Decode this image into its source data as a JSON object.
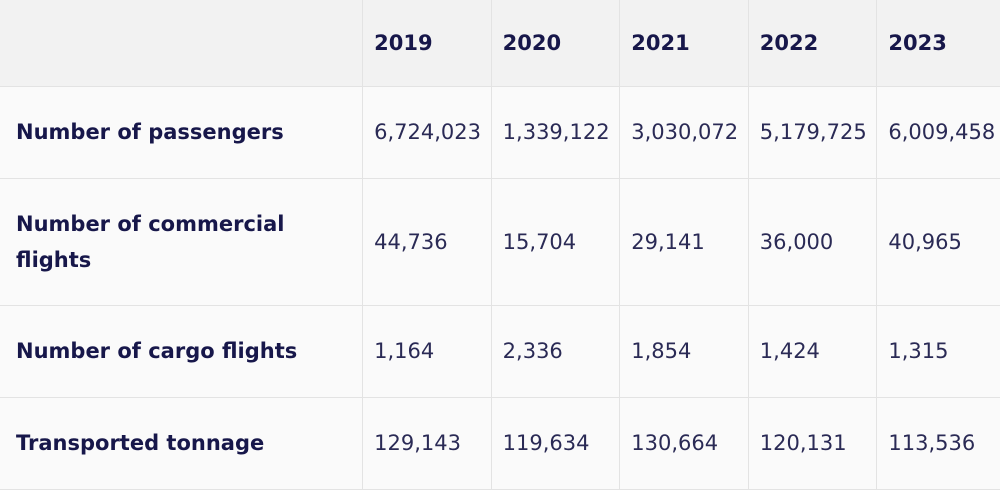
{
  "table": {
    "corner": "",
    "columns": [
      "2019",
      "2020",
      "2021",
      "2022",
      "2023"
    ],
    "rows": [
      {
        "label": "Number of passengers",
        "values": [
          "6,724,023",
          "1,339,122",
          "3,030,072",
          "5,179,725",
          "6,009,458"
        ]
      },
      {
        "label": "Number of commercial flights",
        "values": [
          "44,736",
          "15,704",
          "29,141",
          "36,000",
          "40,965"
        ]
      },
      {
        "label": "Number of cargo flights",
        "values": [
          "1,164",
          "2,336",
          "1,854",
          "1,424",
          "1,315"
        ]
      },
      {
        "label": "Transported tonnage",
        "values": [
          "129,143",
          "119,634",
          "130,664",
          "120,131",
          "113,536"
        ]
      }
    ]
  },
  "colors": {
    "header_bg": "#f2f2f2",
    "row_bg": "#fafafa",
    "border": "#e3e3e3",
    "text": "#17174a"
  }
}
